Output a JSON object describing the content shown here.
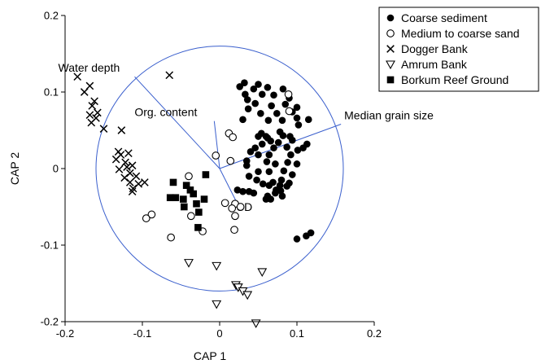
{
  "chart_data": {
    "type": "scatter",
    "title": "",
    "xlabel": "CAP 1",
    "ylabel": "CAP 2",
    "xlim": [
      -0.2,
      0.2
    ],
    "ylim": [
      -0.2,
      0.2
    ],
    "x_ticks": [
      {
        "value": -0.2,
        "label": "-0.2"
      },
      {
        "value": -0.1,
        "label": "-0.1"
      },
      {
        "value": 0,
        "label": "0"
      },
      {
        "value": 0.1,
        "label": "0.1"
      },
      {
        "value": 0.2,
        "label": "0.2"
      }
    ],
    "y_ticks": [
      {
        "value": -0.2,
        "label": "-0.2"
      },
      {
        "value": -0.1,
        "label": "-0.1"
      },
      {
        "value": 0,
        "label": "0"
      },
      {
        "value": 0.1,
        "label": "0.1"
      },
      {
        "value": 0.2,
        "label": "0.2"
      }
    ],
    "grid": false,
    "legend_position": "top-right",
    "correlation_circle_radius": 0.16,
    "circle_color": "#3a5fcd",
    "vectors": [
      {
        "name": "Water depth",
        "x": -0.11,
        "y": 0.12
      },
      {
        "name": "Org. content",
        "x": -0.007,
        "y": 0.062
      },
      {
        "name": "Median grain size",
        "x": 0.157,
        "y": 0.058
      },
      {
        "name": "SD",
        "x": 0.025,
        "y": -0.05
      }
    ],
    "series": [
      {
        "name": "Coarse sediment",
        "marker": "filled-circle",
        "points": [
          [
            0.032,
            0.112
          ],
          [
            0.05,
            0.11
          ],
          [
            0.026,
            0.107
          ],
          [
            0.044,
            0.104
          ],
          [
            0.062,
            0.106
          ],
          [
            0.082,
            0.104
          ],
          [
            0.033,
            0.097
          ],
          [
            0.055,
            0.097
          ],
          [
            0.07,
            0.096
          ],
          [
            0.09,
            0.092
          ],
          [
            0.036,
            0.09
          ],
          [
            0.046,
            0.085
          ],
          [
            0.067,
            0.082
          ],
          [
            0.085,
            0.084
          ],
          [
            0.1,
            0.08
          ],
          [
            0.037,
            0.078
          ],
          [
            0.053,
            0.072
          ],
          [
            0.074,
            0.072
          ],
          [
            0.094,
            0.074
          ],
          [
            0.115,
            0.064
          ],
          [
            0.03,
            0.064
          ],
          [
            0.063,
            0.063
          ],
          [
            0.081,
            0.063
          ],
          [
            0.1,
            0.066
          ],
          [
            0.102,
            0.057
          ],
          [
            0.054,
            0.046
          ],
          [
            0.06,
            0.042
          ],
          [
            0.062,
            0.04
          ],
          [
            0.078,
            0.048
          ],
          [
            0.091,
            0.042
          ],
          [
            0.05,
            0.042
          ],
          [
            0.082,
            0.043
          ],
          [
            0.094,
            0.037
          ],
          [
            0.113,
            0.032
          ],
          [
            0.108,
            0.027
          ],
          [
            0.055,
            0.032
          ],
          [
            0.066,
            0.036
          ],
          [
            0.07,
            0.027
          ],
          [
            0.076,
            0.034
          ],
          [
            0.087,
            0.028
          ],
          [
            0.101,
            0.024
          ],
          [
            0.046,
            0.027
          ],
          [
            0.04,
            0.022
          ],
          [
            0.05,
            0.018
          ],
          [
            0.064,
            0.018
          ],
          [
            0.092,
            0.018
          ],
          [
            0.061,
            0.009
          ],
          [
            0.072,
            0.006
          ],
          [
            0.088,
            0.008
          ],
          [
            0.1,
            0.006
          ],
          [
            0.035,
            0.01
          ],
          [
            0.035,
            0.004
          ],
          [
            0.05,
            -0.004
          ],
          [
            0.064,
            -0.004
          ],
          [
            0.083,
            -0.003
          ],
          [
            0.094,
            -0.008
          ],
          [
            0.038,
            -0.01
          ],
          [
            0.048,
            -0.015
          ],
          [
            0.069,
            -0.018
          ],
          [
            0.08,
            -0.015
          ],
          [
            0.09,
            -0.019
          ],
          [
            0.056,
            -0.02
          ],
          [
            0.064,
            -0.022
          ],
          [
            0.078,
            -0.022
          ],
          [
            0.087,
            -0.023
          ],
          [
            0.023,
            -0.028
          ],
          [
            0.03,
            -0.03
          ],
          [
            0.038,
            -0.03
          ],
          [
            0.044,
            -0.032
          ],
          [
            0.062,
            -0.036
          ],
          [
            0.072,
            -0.032
          ],
          [
            0.073,
            -0.028
          ],
          [
            0.079,
            -0.029
          ],
          [
            0.06,
            -0.04
          ],
          [
            0.066,
            -0.04
          ],
          [
            0.081,
            -0.036
          ],
          [
            0.112,
            -0.088
          ],
          [
            0.118,
            -0.084
          ],
          [
            0.1,
            -0.092
          ]
        ]
      },
      {
        "name": "Medium to coarse sand",
        "marker": "open-circle",
        "points": [
          [
            0.089,
            0.097
          ],
          [
            0.09,
            0.075
          ],
          [
            0.012,
            0.046
          ],
          [
            0.017,
            0.041
          ],
          [
            -0.005,
            0.017
          ],
          [
            0.014,
            0.01
          ],
          [
            -0.04,
            -0.01
          ],
          [
            0.007,
            -0.045
          ],
          [
            0.02,
            -0.046
          ],
          [
            0.027,
            -0.05
          ],
          [
            0.016,
            -0.052
          ],
          [
            0.02,
            -0.062
          ],
          [
            -0.088,
            -0.06
          ],
          [
            -0.095,
            -0.065
          ],
          [
            -0.037,
            -0.062
          ],
          [
            0.019,
            -0.08
          ],
          [
            -0.022,
            -0.082
          ],
          [
            -0.063,
            -0.09
          ]
        ]
      },
      {
        "name": "Dogger Bank",
        "marker": "cross",
        "points": [
          [
            -0.184,
            0.12
          ],
          [
            -0.168,
            0.108
          ],
          [
            -0.175,
            0.1
          ],
          [
            -0.162,
            0.088
          ],
          [
            -0.165,
            0.082
          ],
          [
            -0.158,
            0.073
          ],
          [
            -0.168,
            0.07
          ],
          [
            -0.16,
            0.066
          ],
          [
            -0.166,
            0.06
          ],
          [
            -0.15,
            0.052
          ],
          [
            -0.127,
            0.05
          ],
          [
            -0.065,
            0.122
          ],
          [
            -0.131,
            0.022
          ],
          [
            -0.128,
            0.018
          ],
          [
            -0.118,
            0.02
          ],
          [
            -0.134,
            0.012
          ],
          [
            -0.122,
            0.008
          ],
          [
            -0.12,
            0.002
          ],
          [
            -0.113,
            0.004
          ],
          [
            -0.13,
            -0.001
          ],
          [
            -0.116,
            -0.006
          ],
          [
            -0.108,
            -0.01
          ],
          [
            -0.123,
            -0.012
          ],
          [
            -0.116,
            -0.018
          ],
          [
            -0.105,
            -0.02
          ],
          [
            -0.097,
            -0.018
          ],
          [
            -0.112,
            -0.026
          ],
          [
            -0.113,
            -0.03
          ]
        ]
      },
      {
        "name": "Amrum Bank",
        "marker": "open-triangle",
        "points": [
          [
            -0.04,
            -0.123
          ],
          [
            -0.004,
            -0.127
          ],
          [
            0.055,
            -0.135
          ],
          [
            0.021,
            -0.152
          ],
          [
            0.024,
            -0.155
          ],
          [
            0.03,
            -0.16
          ],
          [
            0.036,
            -0.165
          ],
          [
            -0.004,
            -0.177
          ],
          [
            0.047,
            -0.202
          ]
        ]
      },
      {
        "name": "Borkum Reef Ground",
        "marker": "filled-square",
        "points": [
          [
            -0.018,
            -0.008
          ],
          [
            -0.06,
            -0.018
          ],
          [
            -0.043,
            -0.022
          ],
          [
            -0.038,
            -0.028
          ],
          [
            -0.034,
            -0.033
          ],
          [
            -0.057,
            -0.038
          ],
          [
            -0.047,
            -0.04
          ],
          [
            -0.02,
            -0.04
          ],
          [
            -0.03,
            -0.046
          ],
          [
            -0.046,
            -0.05
          ],
          [
            -0.027,
            -0.057
          ],
          [
            -0.064,
            -0.038
          ],
          [
            -0.028,
            -0.077
          ]
        ]
      }
    ]
  }
}
